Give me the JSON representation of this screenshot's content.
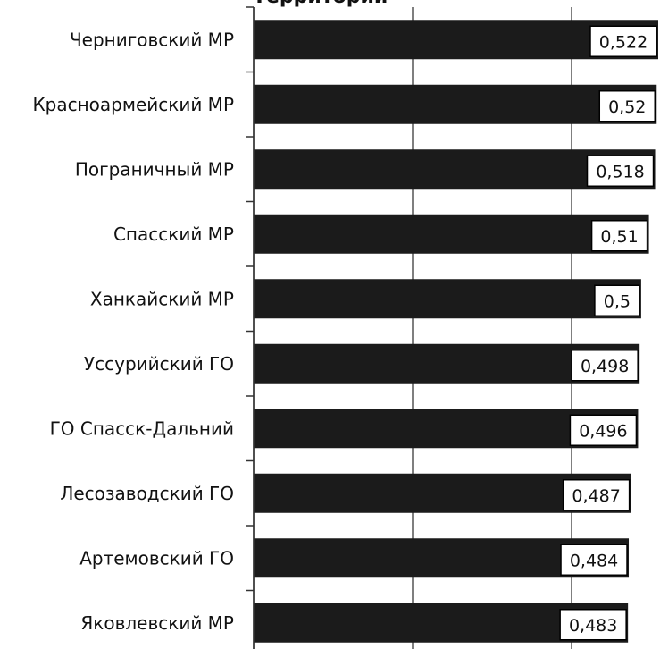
{
  "title": "Территории",
  "chart_data": {
    "type": "bar",
    "orientation": "horizontal",
    "categories": [
      "Черниговский МР",
      "Красноармейский МР",
      "Пограничный МР",
      "Спасский МР",
      "Ханкайский МР",
      "Уссурийский ГО",
      "ГО Спасск-Дальний",
      "Лесозаводский ГО",
      "Артемовский ГО",
      "Яковлевский МР"
    ],
    "values": [
      0.522,
      0.52,
      0.518,
      0.51,
      0.5,
      0.498,
      0.496,
      0.487,
      0.484,
      0.483
    ],
    "value_labels": [
      "0,522",
      "0,52",
      "0,518",
      "0,51",
      "0,5",
      "0,498",
      "0,496",
      "0,487",
      "0,484",
      "0,483"
    ],
    "grid": true,
    "legend": "none",
    "colors": {
      "bar": "#1b1b1b",
      "grid": "#555555",
      "label_bg": "#ffffff",
      "label_border": "#000000"
    }
  }
}
